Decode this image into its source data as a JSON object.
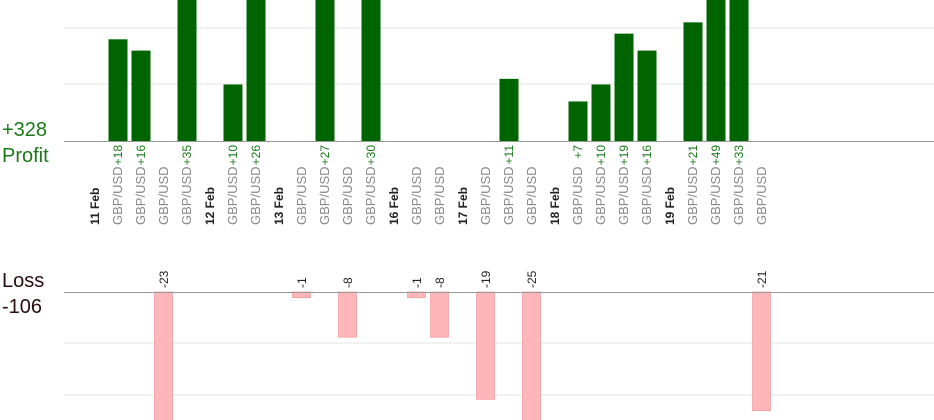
{
  "summary": {
    "profit_total": "+328",
    "profit_label": "Profit",
    "loss_label": "Loss",
    "loss_total": "-106"
  },
  "colors": {
    "profit_bar": "#006400",
    "profit_text": "#1a7a1a",
    "loss_bar": "#ffb6b8",
    "loss_text": "#222222",
    "total_text": "#2a0d0d",
    "axis": "#999999",
    "grid": "#e6e6e6",
    "date_text": "#222222",
    "pair_text": "#888888"
  },
  "chart_data": {
    "type": "bar",
    "title": "",
    "columns": [
      {
        "label": "11 Feb",
        "kind": "date"
      },
      {
        "label": "GBP/USD",
        "kind": "trade",
        "value": 18,
        "value_label": "+18"
      },
      {
        "label": "GBP/USD",
        "kind": "trade",
        "value": 16,
        "value_label": "+16"
      },
      {
        "label": "GBP/USD",
        "kind": "trade",
        "value": -23,
        "value_label": "-23"
      },
      {
        "label": "GBP/USD",
        "kind": "trade",
        "value": 35,
        "value_label": "+35"
      },
      {
        "label": "12 Feb",
        "kind": "date"
      },
      {
        "label": "GBP/USD",
        "kind": "trade",
        "value": 10,
        "value_label": "+10"
      },
      {
        "label": "GBP/USD",
        "kind": "trade",
        "value": 26,
        "value_label": "+26"
      },
      {
        "label": "13 Feb",
        "kind": "date"
      },
      {
        "label": "GBP/USD",
        "kind": "trade",
        "value": -1,
        "value_label": "-1"
      },
      {
        "label": "GBP/USD",
        "kind": "trade",
        "value": 27,
        "value_label": "+27"
      },
      {
        "label": "GBP/USD",
        "kind": "trade",
        "value": -8,
        "value_label": "-8"
      },
      {
        "label": "GBP/USD",
        "kind": "trade",
        "value": 30,
        "value_label": "+30"
      },
      {
        "label": "16 Feb",
        "kind": "date"
      },
      {
        "label": "GBP/USD",
        "kind": "trade",
        "value": -1,
        "value_label": "-1"
      },
      {
        "label": "GBP/USD",
        "kind": "trade",
        "value": -8,
        "value_label": "-8"
      },
      {
        "label": "17 Feb",
        "kind": "date"
      },
      {
        "label": "GBP/USD",
        "kind": "trade",
        "value": -19,
        "value_label": "-19"
      },
      {
        "label": "GBP/USD",
        "kind": "trade",
        "value": 11,
        "value_label": "+11"
      },
      {
        "label": "GBP/USD",
        "kind": "trade",
        "value": -25,
        "value_label": "-25"
      },
      {
        "label": "18 Feb",
        "kind": "date"
      },
      {
        "label": "GBP/USD",
        "kind": "trade",
        "value": 7,
        "value_label": "+7"
      },
      {
        "label": "GBP/USD",
        "kind": "trade",
        "value": 10,
        "value_label": "+10"
      },
      {
        "label": "GBP/USD",
        "kind": "trade",
        "value": 19,
        "value_label": "+19"
      },
      {
        "label": "GBP/USD",
        "kind": "trade",
        "value": 16,
        "value_label": "+16"
      },
      {
        "label": "19 Feb",
        "kind": "date"
      },
      {
        "label": "GBP/USD",
        "kind": "trade",
        "value": 21,
        "value_label": "+21"
      },
      {
        "label": "GBP/USD",
        "kind": "trade",
        "value": 49,
        "value_label": "+49"
      },
      {
        "label": "GBP/USD",
        "kind": "trade",
        "value": 33,
        "value_label": "+33"
      },
      {
        "label": "GBP/USD",
        "kind": "trade",
        "value": -21,
        "value_label": "-21"
      }
    ]
  }
}
